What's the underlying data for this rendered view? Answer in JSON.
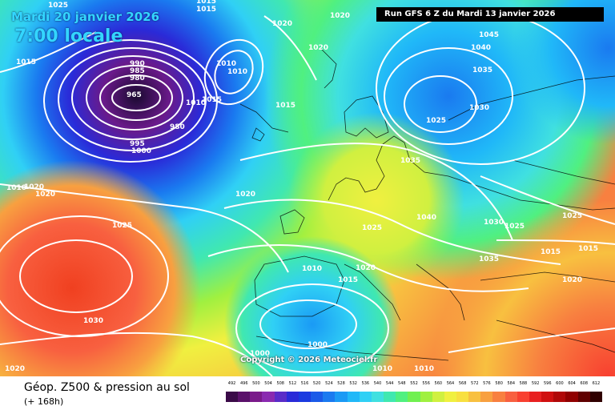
{
  "header": {
    "date_label": "Mardi 20 janvier 2026",
    "time_label": "7:00 locale",
    "run_label": "Run GFS 6 Z du Mardi 13 janvier 2026"
  },
  "footer": {
    "product_title": "Géop. Z500 & pression au sol",
    "forecast_hour": "(+ 168h)",
    "copyright": "Copyright © 2026 Meteociel.fr"
  },
  "legend": {
    "values": [
      492,
      496,
      500,
      504,
      508,
      512,
      516,
      520,
      524,
      528,
      532,
      536,
      540,
      544,
      548,
      552,
      556,
      560,
      564,
      568,
      572,
      576,
      580,
      584,
      588,
      592,
      596,
      600,
      604,
      608,
      612
    ],
    "colors": [
      "#3a0a48",
      "#5a106a",
      "#7a1a8a",
      "#8a2ab0",
      "#5a2cc8",
      "#2a2ad8",
      "#1a3ae0",
      "#1a5ae8",
      "#1a7af0",
      "#1a9af5",
      "#20b8f8",
      "#30d0f5",
      "#40e0e0",
      "#40e8b0",
      "#50f080",
      "#70f050",
      "#a0f040",
      "#d0f040",
      "#f0f040",
      "#f8e040",
      "#f8c040",
      "#f8a040",
      "#f88040",
      "#f86040",
      "#f84030",
      "#e82020",
      "#d01010",
      "#b00808",
      "#900000",
      "#600000",
      "#300000"
    ]
  },
  "isobar_labels": [
    {
      "text": "1025"
    },
    {
      "text": "1015"
    },
    {
      "text": "1015"
    },
    {
      "text": "1020"
    },
    {
      "text": "1015"
    },
    {
      "text": "990"
    },
    {
      "text": "985"
    },
    {
      "text": "980"
    },
    {
      "text": "965"
    },
    {
      "text": "1010"
    },
    {
      "text": "1010"
    },
    {
      "text": "1010"
    },
    {
      "text": "1015"
    },
    {
      "text": "1020"
    },
    {
      "text": "1020"
    },
    {
      "text": "1015"
    },
    {
      "text": "980"
    },
    {
      "text": "995"
    },
    {
      "text": "1000"
    },
    {
      "text": "1020"
    },
    {
      "text": "1020"
    },
    {
      "text": "1010"
    },
    {
      "text": "1045"
    },
    {
      "text": "1040"
    },
    {
      "text": "1035"
    },
    {
      "text": "1030"
    },
    {
      "text": "1025"
    },
    {
      "text": "1035"
    },
    {
      "text": "1040"
    },
    {
      "text": "1030"
    },
    {
      "text": "1025"
    },
    {
      "text": "1025"
    },
    {
      "text": "1015"
    },
    {
      "text": "1015"
    },
    {
      "text": "1035"
    },
    {
      "text": "1025"
    },
    {
      "text": "1020"
    },
    {
      "text": "1020"
    },
    {
      "text": "1010"
    },
    {
      "text": "1015"
    },
    {
      "text": "1020"
    },
    {
      "text": "1010"
    },
    {
      "text": "1025"
    },
    {
      "text": "1030"
    },
    {
      "text": "1000"
    },
    {
      "text": "1000"
    },
    {
      "text": "1020"
    },
    {
      "text": "1010"
    }
  ]
}
